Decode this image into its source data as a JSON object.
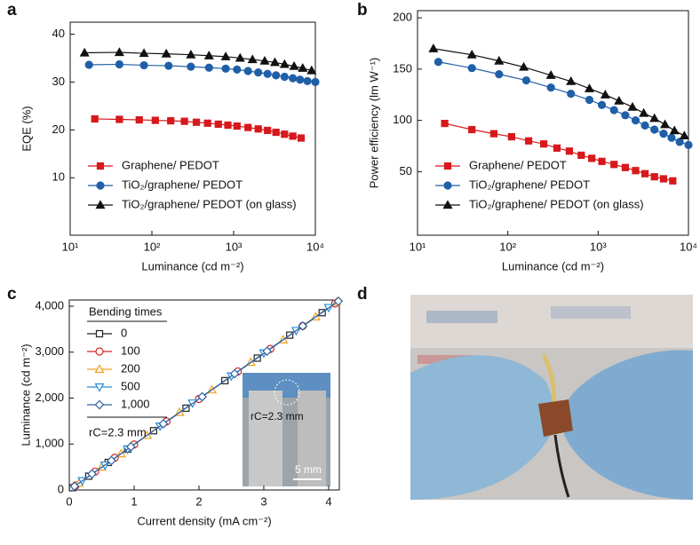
{
  "chart_data": [
    {
      "type": "line",
      "panel_label": "a",
      "x_label": "Luminance (cd m⁻²)",
      "y_label": "EQE (%)",
      "xlog": true,
      "xlim": [
        10,
        10000
      ],
      "xticks": [
        {
          "value": 10,
          "label": "10¹"
        },
        {
          "value": 100,
          "label": "10²"
        },
        {
          "value": 1000,
          "label": "10³"
        },
        {
          "value": 10000,
          "label": "10⁴"
        }
      ],
      "ylim": [
        -2,
        42.5
      ],
      "yticks": [
        10,
        20,
        30,
        40
      ],
      "legend_loc": "lower left",
      "series": [
        {
          "name": "Graphene/ PEDOT",
          "color": "#d7191c",
          "marker": "square",
          "filled": true,
          "x": [
            20,
            40,
            70,
            110,
            170,
            250,
            350,
            480,
            650,
            850,
            1100,
            1500,
            2000,
            2600,
            3300,
            4200,
            5300,
            6700
          ],
          "values": [
            22.3,
            22.2,
            22.1,
            22.0,
            21.9,
            21.8,
            21.6,
            21.4,
            21.2,
            21.0,
            20.8,
            20.5,
            20.2,
            19.9,
            19.5,
            19.1,
            18.7,
            18.3
          ]
        },
        {
          "name": "TiO₂/graphene/ PEDOT",
          "color": "#1f5fa8",
          "marker": "circle",
          "filled": true,
          "x": [
            17,
            40,
            80,
            160,
            300,
            500,
            800,
            1100,
            1500,
            2000,
            2600,
            3300,
            4200,
            5300,
            6500,
            8000,
            10000
          ],
          "values": [
            33.6,
            33.7,
            33.5,
            33.4,
            33.2,
            33.0,
            32.8,
            32.6,
            32.3,
            32.0,
            31.7,
            31.4,
            31.1,
            30.8,
            30.5,
            30.2,
            30.0
          ]
        },
        {
          "name": "TiO₂/graphene/ PEDOT (on glass)",
          "color": "#111111",
          "marker": "triangle",
          "filled": true,
          "x": [
            15,
            40,
            80,
            150,
            300,
            500,
            800,
            1200,
            1700,
            2400,
            3200,
            4200,
            5500,
            7000,
            9000
          ],
          "values": [
            36.1,
            36.2,
            36.0,
            35.9,
            35.7,
            35.5,
            35.3,
            35.0,
            34.7,
            34.4,
            34.1,
            33.7,
            33.3,
            32.9,
            32.4
          ]
        }
      ]
    },
    {
      "type": "line",
      "panel_label": "b",
      "x_label": "Luminance (cd m⁻²)",
      "y_label": "Power efficiency (lm W⁻¹)",
      "xlog": true,
      "xlim": [
        10,
        10000
      ],
      "xticks": [
        {
          "value": 10,
          "label": "10¹"
        },
        {
          "value": 100,
          "label": "10²"
        },
        {
          "value": 1000,
          "label": "10³"
        },
        {
          "value": 10000,
          "label": "10⁴"
        }
      ],
      "ylim": [
        -12,
        207
      ],
      "yticks": [
        50,
        100,
        150,
        200
      ],
      "legend_loc": "lower left",
      "series": [
        {
          "name": "Graphene/ PEDOT",
          "color": "#d7191c",
          "marker": "square",
          "filled": true,
          "x": [
            20,
            40,
            70,
            110,
            170,
            250,
            350,
            480,
            650,
            850,
            1100,
            1500,
            2000,
            2600,
            3300,
            4200,
            5300,
            6700
          ],
          "values": [
            97,
            91,
            87,
            84,
            80,
            77,
            73,
            70,
            66,
            63,
            60,
            57,
            54,
            51,
            48,
            45,
            43,
            41
          ]
        },
        {
          "name": "TiO₂/graphene/ PEDOT",
          "color": "#1f5fa8",
          "marker": "circle",
          "filled": true,
          "x": [
            17,
            40,
            80,
            160,
            300,
            500,
            800,
            1100,
            1500,
            2000,
            2600,
            3300,
            4200,
            5300,
            6500,
            8000,
            10000
          ],
          "values": [
            157,
            151,
            145,
            139,
            132,
            126,
            120,
            115,
            110,
            105,
            100,
            95,
            91,
            87,
            83,
            79,
            76
          ]
        },
        {
          "name": "TiO₂/graphene/ PEDOT (on glass)",
          "color": "#111111",
          "marker": "triangle",
          "filled": true,
          "x": [
            15,
            40,
            80,
            150,
            300,
            500,
            800,
            1200,
            1700,
            2400,
            3200,
            4200,
            5500,
            7000,
            9000
          ],
          "values": [
            170,
            164,
            158,
            152,
            144,
            138,
            131,
            125,
            119,
            113,
            107,
            102,
            96,
            90,
            85
          ]
        }
      ]
    },
    {
      "type": "line",
      "panel_label": "c",
      "x_label": "Current density (mA cm⁻²)",
      "y_label": "Luminance (cd m⁻²)",
      "xlim": [
        0,
        4.165
      ],
      "xticks": [
        0,
        1,
        2,
        3,
        4
      ],
      "ylim": [
        0,
        4135
      ],
      "yticks": [
        0,
        {
          "value": 1000,
          "label": "1,000"
        },
        {
          "value": 2000,
          "label": "2,000"
        },
        {
          "value": 3000,
          "label": "3,000"
        },
        {
          "value": 4000,
          "label": "4,000"
        }
      ],
      "legend_loc": "upper left",
      "legend_title": "Bending times",
      "legend_note": "rC=2.3 mm",
      "inset_radius_label": "rC=2.3 mm",
      "inset_scale_label": "5 mm",
      "series": [
        {
          "name": "0",
          "color": "#222222",
          "marker": "square",
          "filled": false,
          "x": [
            0.05,
            0.3,
            0.6,
            0.9,
            1.3,
            1.8,
            2.4,
            2.9,
            3.4,
            3.9
          ],
          "values": [
            50,
            300,
            600,
            890,
            1290,
            1780,
            2380,
            2870,
            3370,
            3860
          ]
        },
        {
          "name": "100",
          "color": "#d62728",
          "marker": "circle",
          "filled": false,
          "x": [
            0.1,
            0.4,
            0.7,
            1.0,
            1.5,
            2.0,
            2.6,
            3.1,
            3.6,
            4.1
          ],
          "values": [
            100,
            400,
            700,
            990,
            1490,
            1980,
            2580,
            3070,
            3570,
            4060
          ]
        },
        {
          "name": "200",
          "color": "#f0a020",
          "marker": "triangle",
          "filled": false,
          "x": [
            0.15,
            0.5,
            0.8,
            1.2,
            1.7,
            2.2,
            2.8,
            3.3,
            3.8,
            4.12
          ],
          "values": [
            150,
            500,
            790,
            1190,
            1690,
            2180,
            2780,
            3270,
            3770,
            4090
          ]
        },
        {
          "name": "500",
          "color": "#2a8ad4",
          "marker": "triangle-down",
          "filled": false,
          "x": [
            0.2,
            0.55,
            0.9,
            1.4,
            1.9,
            2.5,
            3.0,
            3.5,
            4.0
          ],
          "values": [
            200,
            540,
            890,
            1390,
            1890,
            2480,
            2980,
            3470,
            3970
          ]
        },
        {
          "name": "1,000",
          "color": "#2c5f9e",
          "marker": "diamond",
          "filled": false,
          "x": [
            0.08,
            0.35,
            0.65,
            0.95,
            1.45,
            2.05,
            2.55,
            3.05,
            3.6,
            4.15
          ],
          "values": [
            80,
            350,
            640,
            940,
            1440,
            2030,
            2530,
            3020,
            3570,
            4110
          ]
        }
      ]
    },
    {
      "type": "photo",
      "panel_label": "d"
    }
  ]
}
